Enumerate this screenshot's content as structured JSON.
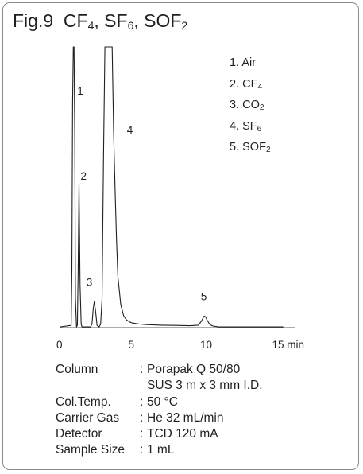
{
  "figure": {
    "title_prefix": "Fig.9",
    "title_parts": [
      {
        "text": "CF",
        "sub": "4",
        "after": ", "
      },
      {
        "text": "SF",
        "sub": "6",
        "after": ", "
      },
      {
        "text": "SOF",
        "sub": "2",
        "after": ""
      }
    ]
  },
  "legend": [
    {
      "num": "1.",
      "text": "Air",
      "sub": ""
    },
    {
      "num": "2.",
      "text": "CF",
      "sub": "4"
    },
    {
      "num": "3.",
      "text": "CO",
      "sub": "2"
    },
    {
      "num": "4.",
      "text": "SF",
      "sub": "6"
    },
    {
      "num": "5.",
      "text": "SOF",
      "sub": "2"
    }
  ],
  "chart_data": {
    "type": "line",
    "title": "Fig.9 CF4, SF6, SOF2",
    "xlabel": "",
    "ylabel": "",
    "x_unit": "min",
    "xlim": [
      0,
      16
    ],
    "ylim": [
      0,
      100
    ],
    "x_ticks": [
      0,
      5,
      10,
      15
    ],
    "x_tick_labels": [
      "0",
      "5",
      "10",
      "15 min"
    ],
    "y_axis_visible": false,
    "grid": false,
    "legend_position": "top-right",
    "series": [
      {
        "x": [
          0,
          0.75,
          0.8,
          0.85,
          0.9,
          0.95,
          1.0,
          1.05,
          1.12,
          1.18,
          1.24,
          1.3,
          1.37,
          1.45,
          1.5,
          2.1,
          2.2,
          2.28,
          2.36,
          2.44,
          2.55,
          2.7,
          2.8,
          2.9,
          3.0,
          3.1,
          3.2,
          3.45,
          3.6,
          3.7,
          3.8,
          3.9,
          4.0,
          4.2,
          4.4,
          4.6,
          4.8,
          5.0,
          5.5,
          6.0,
          7.0,
          8.0,
          9.0,
          9.6,
          9.8,
          10.0,
          10.1,
          10.2,
          10.4,
          10.6,
          11.0,
          12.0,
          14.0,
          15.5
        ],
        "y": [
          0,
          0.5,
          20,
          80,
          100,
          100,
          70,
          10,
          0,
          0.5,
          20,
          51,
          15,
          1,
          0,
          0,
          1,
          6.3,
          9,
          6,
          0.5,
          0,
          1,
          10,
          60,
          100,
          100,
          100,
          100,
          70,
          50,
          32,
          18,
          8,
          4,
          2.5,
          1.8,
          1.4,
          1,
          0.8,
          0.6,
          0.5,
          0.4,
          0.6,
          2,
          3.9,
          3.6,
          2.5,
          0.8,
          0.3,
          0,
          0,
          0,
          0
        ]
      }
    ],
    "peak_labels": [
      "1",
      "2",
      "3",
      "4",
      "5"
    ],
    "peak_times": [
      0.95,
      1.3,
      2.36,
      3.3,
      10.05
    ],
    "peak_heights": [
      100,
      51,
      9,
      100,
      3.9
    ]
  },
  "conditions": [
    {
      "label": "Column",
      "sep": ":",
      "value": "Porapak Q 50/80",
      "indent": false
    },
    {
      "label": "",
      "sep": "",
      "value": "SUS 3 m x 3 mm I.D.",
      "indent": true
    },
    {
      "label": "Col.Temp.",
      "sep": ":",
      "value": "50 °C",
      "indent": false
    },
    {
      "label": "Carrier Gas",
      "sep": ":",
      "value": "He 32 mL/min",
      "indent": false
    },
    {
      "label": "Detector",
      "sep": ":",
      "value": "TCD 120 mA",
      "indent": false
    },
    {
      "label": "Sample Size",
      "sep": ":",
      "value": "1 mL",
      "indent": false
    }
  ]
}
